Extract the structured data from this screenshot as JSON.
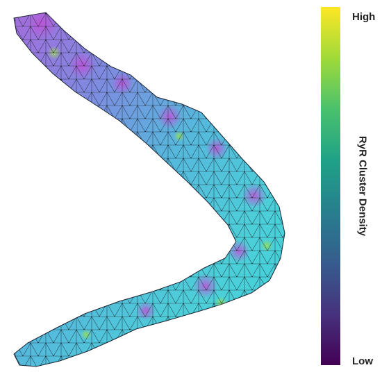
{
  "colorbar": {
    "high_label": "High",
    "low_label": "Low",
    "title": "RyR Cluster Density",
    "stops": [
      "#440154",
      "#46327e",
      "#365c8d",
      "#277f8e",
      "#1fa187",
      "#4ac16d",
      "#a0da39",
      "#fde725"
    ]
  },
  "mesh": {
    "base_color": "#3ec8d6",
    "hot_color": "#b45cd6",
    "edge_color": "#1a2330"
  }
}
